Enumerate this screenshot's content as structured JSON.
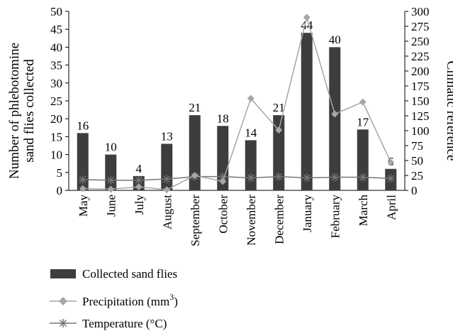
{
  "chart_data": {
    "type": "bar",
    "categories": [
      "May",
      "June",
      "July",
      "August",
      "September",
      "October",
      "November",
      "December",
      "January",
      "February",
      "March",
      "April"
    ],
    "series": [
      {
        "name": "Collected sand flies",
        "type": "bar",
        "axis": "left",
        "color": "#3d3d3d",
        "values": [
          16,
          10,
          4,
          13,
          21,
          18,
          14,
          21,
          44,
          40,
          17,
          6
        ],
        "data_labels": [
          "16",
          "10",
          "4",
          "13",
          "21",
          "18",
          "14",
          "21",
          "44",
          "40",
          "17",
          "6"
        ]
      },
      {
        "name": "Precipitation (mm",
        "name_sup": "3",
        "name_suffix": ")",
        "type": "line",
        "marker": "diamond",
        "axis": "right",
        "color": "#a6a6a6",
        "values": [
          3,
          2,
          6,
          1,
          25,
          15,
          154,
          101,
          290,
          128,
          148,
          47
        ]
      },
      {
        "name": "Temperature (°C)",
        "type": "line",
        "marker": "asterisk",
        "axis": "right",
        "color": "#777777",
        "values": [
          18,
          17,
          17,
          19,
          23,
          23,
          21,
          23,
          21,
          22,
          22,
          20
        ]
      }
    ],
    "y_left": {
      "label_line1": "Number of phlebotomine",
      "label_line2": "sand flies collected",
      "ylim": [
        0,
        50
      ],
      "ticks": [
        "0",
        "5",
        "10",
        "15",
        "20",
        "25",
        "30",
        "35",
        "40",
        "45",
        "50"
      ]
    },
    "y_right": {
      "label": "Climatic reference",
      "ylim": [
        0,
        300
      ],
      "ticks": [
        "0",
        "25",
        "50",
        "75",
        "100",
        "125",
        "150",
        "175",
        "200",
        "225",
        "250",
        "275",
        "300"
      ]
    },
    "grid": false,
    "legend_position": "bottom-left"
  }
}
